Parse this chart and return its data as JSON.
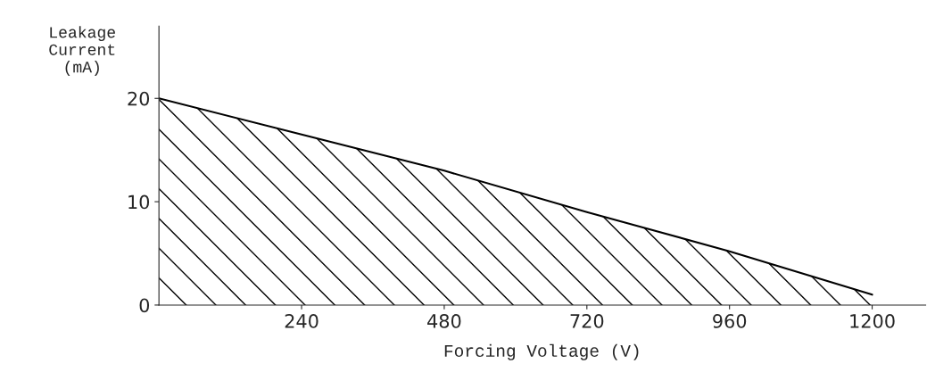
{
  "chart_data": {
    "type": "area",
    "xlabel": "Forcing Voltage (V)",
    "ylabel": "Leakage\nCurrent\n(mA)",
    "x": [
      0,
      240,
      480,
      720,
      960,
      1200
    ],
    "series": [
      {
        "color": "#000000",
        "values": [
          20,
          16.5,
          13,
          9,
          5.2,
          1
        ]
      }
    ],
    "xlim": [
      0,
      1290
    ],
    "ylim": [
      0,
      27
    ],
    "xticks": [
      240,
      480,
      720,
      960,
      1200
    ],
    "yticks": [
      0,
      10,
      20
    ],
    "grid": false,
    "legend": false
  }
}
